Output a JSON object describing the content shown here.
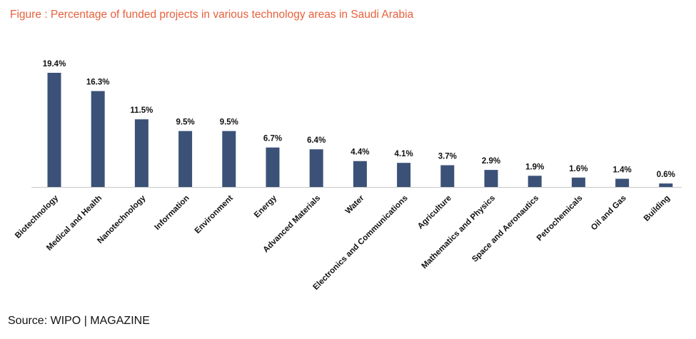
{
  "title": "Figure : Percentage of funded projects in various technology areas in Saudi Arabia",
  "source": "Source:  WIPO | MAGAZINE",
  "colors": {
    "bar": "#3b5178",
    "title": "#e8603c",
    "axis": "#c8c8c8"
  },
  "chart_data": {
    "type": "bar",
    "title": "Figure : Percentage of funded projects in various technology areas in Saudi Arabia",
    "xlabel": "",
    "ylabel": "",
    "ylim": [
      0,
      20
    ],
    "grid": false,
    "unit": "%",
    "categories": [
      "Biotechnology",
      "Medical and Health",
      "Nanotechnology",
      "Information",
      "Environment",
      "Energy",
      "Advanced Materials",
      "Water",
      "Electronics and Communications",
      "Agriculture",
      "Mathematics and Physics",
      "Space and Aeronautics",
      "Petrochemicals",
      "Oil and Gas",
      "Building"
    ],
    "values": [
      19.4,
      16.3,
      11.5,
      9.5,
      9.5,
      6.7,
      6.4,
      4.4,
      4.1,
      3.7,
      2.9,
      1.9,
      1.6,
      1.4,
      0.6
    ],
    "labels": [
      "19.4%",
      "16.3%",
      "11.5%",
      "9.5%",
      "9.5%",
      "6.7%",
      "6.4%",
      "4.4%",
      "4.1%",
      "3.7%",
      "2.9%",
      "1.9%",
      "1.6%",
      "1.4%",
      "0.6%"
    ]
  }
}
